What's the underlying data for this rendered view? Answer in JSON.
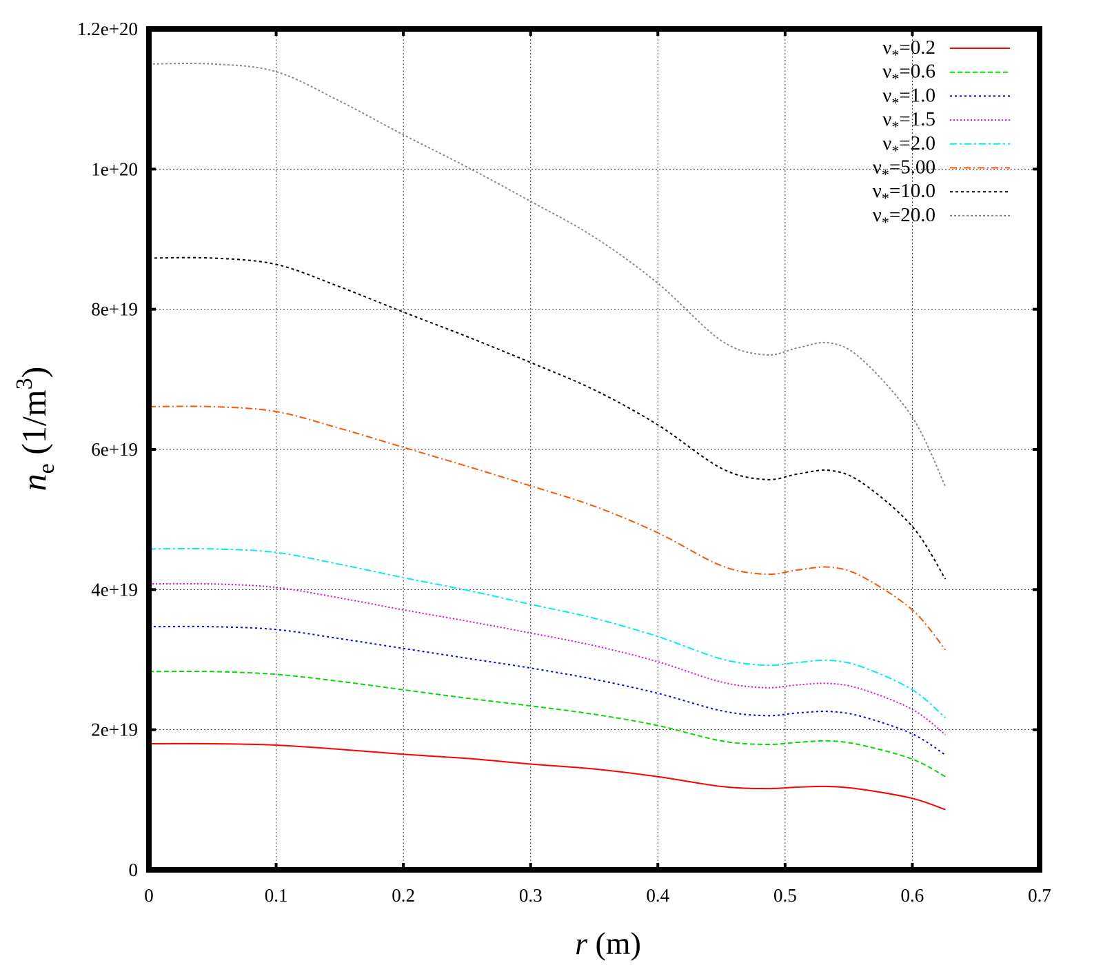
{
  "chart_data": {
    "type": "line",
    "xlabel": {
      "symbol": "r",
      "unit": " (m)"
    },
    "ylabel": {
      "symbol": "n",
      "subscript": "e",
      "unit_prefix": " (1/m",
      "unit_sup": "3",
      "unit_suffix": ")"
    },
    "xlim": [
      0,
      0.7
    ],
    "ylim": [
      0,
      1.2e+20
    ],
    "x_ticks": [
      {
        "value": 0,
        "label": "0"
      },
      {
        "value": 0.1,
        "label": "0.1"
      },
      {
        "value": 0.2,
        "label": "0.2"
      },
      {
        "value": 0.3,
        "label": "0.3"
      },
      {
        "value": 0.4,
        "label": "0.4"
      },
      {
        "value": 0.5,
        "label": "0.5"
      },
      {
        "value": 0.6,
        "label": "0.6"
      },
      {
        "value": 0.7,
        "label": "0.7"
      }
    ],
    "y_ticks": [
      {
        "value": 0,
        "label": "0"
      },
      {
        "value": 2e+19,
        "label": "2e+19"
      },
      {
        "value": 4e+19,
        "label": "4e+19"
      },
      {
        "value": 6e+19,
        "label": "6e+19"
      },
      {
        "value": 8e+19,
        "label": "8e+19"
      },
      {
        "value": 1e+20,
        "label": "1e+20"
      },
      {
        "value": 1.2e+20,
        "label": "1.2e+20"
      }
    ],
    "grid": true,
    "legend_position": "top-right",
    "x": [
      0,
      0.05,
      0.1,
      0.15,
      0.2,
      0.25,
      0.3,
      0.35,
      0.4,
      0.45,
      0.485,
      0.51,
      0.535,
      0.56,
      0.6,
      0.626
    ],
    "series": [
      {
        "name": "ν*=0.2",
        "label_base": "ν",
        "label_sub": "*",
        "label_value": "=0.2",
        "color": "#ff0000",
        "dash": "",
        "values": [
          1.8e+19,
          1.8e+19,
          1.78e+19,
          1.72e+19,
          1.65e+19,
          1.59e+19,
          1.51e+19,
          1.44e+19,
          1.33e+19,
          1.19e+19,
          1.16e+19,
          1.18e+19,
          1.19e+19,
          1.15e+19,
          1.02e+19,
          8.6e+18
        ]
      },
      {
        "name": "ν*=0.6",
        "label_base": "ν",
        "label_sub": "*",
        "label_value": "=0.6",
        "color": "#00dd00",
        "dash": "7,4",
        "values": [
          2.83e+19,
          2.83e+19,
          2.79e+19,
          2.69e+19,
          2.57e+19,
          2.45e+19,
          2.34e+19,
          2.22e+19,
          2.06e+19,
          1.84e+19,
          1.79e+19,
          1.82e+19,
          1.84e+19,
          1.78e+19,
          1.58e+19,
          1.33e+19
        ]
      },
      {
        "name": "ν*=1.0",
        "label_base": "ν",
        "label_sub": "*",
        "label_value": "=1.0",
        "color": "#0000ff",
        "dash": "3,4",
        "values": [
          3.47e+19,
          3.47e+19,
          3.43e+19,
          3.3e+19,
          3.16e+19,
          3.02e+19,
          2.88e+19,
          2.72e+19,
          2.52e+19,
          2.27e+19,
          2.2e+19,
          2.24e+19,
          2.26e+19,
          2.19e+19,
          1.94e+19,
          1.64e+19
        ]
      },
      {
        "name": "ν*=1.5",
        "label_base": "ν",
        "label_sub": "*",
        "label_value": "=1.5",
        "color": "#ee00ee",
        "dash": "2,3",
        "values": [
          4.08e+19,
          4.08e+19,
          4.03e+19,
          3.88e+19,
          3.71e+19,
          3.55e+19,
          3.38e+19,
          3.2e+19,
          2.97e+19,
          2.68e+19,
          2.6e+19,
          2.64e+19,
          2.66e+19,
          2.58e+19,
          2.29e+19,
          1.93e+19
        ]
      },
      {
        "name": "ν*=2.0",
        "label_base": "ν",
        "label_sub": "*",
        "label_value": "=2.0",
        "color": "#00eeee",
        "dash": "10,4,3,4",
        "values": [
          4.58e+19,
          4.58e+19,
          4.53e+19,
          4.36e+19,
          4.17e+19,
          3.99e+19,
          3.79e+19,
          3.59e+19,
          3.33e+19,
          3.01e+19,
          2.92e+19,
          2.96e+19,
          2.99e+19,
          2.9e+19,
          2.57e+19,
          2.17e+19
        ]
      },
      {
        "name": "ν*=5.00",
        "label_base": "ν",
        "label_sub": "*",
        "label_value": "=5.00",
        "color": "#ff5500",
        "dash": "10,4,2,4",
        "values": [
          6.61e+19,
          6.61e+19,
          6.54e+19,
          6.3e+19,
          6.03e+19,
          5.76e+19,
          5.48e+19,
          5.19e+19,
          4.81e+19,
          4.34e+19,
          4.22e+19,
          4.28e+19,
          4.32e+19,
          4.19e+19,
          3.71e+19,
          3.14e+19
        ]
      },
      {
        "name": "ν*=10.0",
        "label_base": "ν",
        "label_sub": "*",
        "label_value": "=10.0",
        "color": "#000000",
        "dash": "4,4",
        "values": [
          8.73e+19,
          8.73e+19,
          8.64e+19,
          8.32e+19,
          7.96e+19,
          7.61e+19,
          7.24e+19,
          6.85e+19,
          6.35e+19,
          5.73e+19,
          5.57e+19,
          5.65e+19,
          5.7e+19,
          5.53e+19,
          4.9e+19,
          4.15e+19
        ]
      },
      {
        "name": "ν*=20.0",
        "label_base": "ν",
        "label_sub": "*",
        "label_value": "=20.0",
        "color": "#888888",
        "dash": "3,3",
        "values": [
          1.15e+20,
          1.15e+20,
          1.139e+20,
          1.097e+20,
          1.049e+20,
          1.003e+20,
          9.54e+19,
          9.03e+19,
          8.37e+19,
          7.55e+19,
          7.35e+19,
          7.45e+19,
          7.52e+19,
          7.29e+19,
          6.46e+19,
          5.47e+19
        ]
      }
    ]
  }
}
